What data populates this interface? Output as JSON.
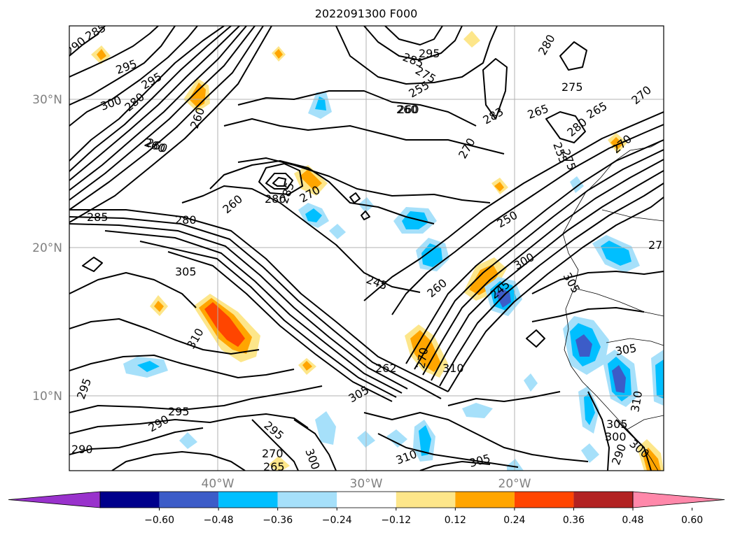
{
  "title": "2022091300 F000",
  "lat_labels": [
    "30°N",
    "20°N",
    "10°N"
  ],
  "lon_labels": [
    "40°W",
    "30°W",
    "20°W"
  ],
  "contour_labels": [
    "285",
    "290",
    "295",
    "295",
    "300",
    "280",
    "260",
    "260",
    "260",
    "285",
    "305",
    "310",
    "305",
    "280",
    "260",
    "285",
    "270",
    "260",
    "280",
    "285",
    "295",
    "290",
    "295",
    "300",
    "295",
    "270",
    "265",
    "310",
    "305",
    "290",
    "245",
    "250",
    "260",
    "300",
    "305",
    "310",
    "295",
    "275",
    "255",
    "260",
    "270",
    "283",
    "255",
    "275",
    "280",
    "265",
    "270",
    "265",
    "280",
    "270",
    "305",
    "305",
    "300",
    "300",
    "290",
    "310",
    "275",
    "245",
    "262",
    "270",
    "27"
  ],
  "colorbar": {
    "tick_labels": [
      "−0.60",
      "−0.48",
      "−0.36",
      "−0.24",
      "−0.12",
      "0.12",
      "0.24",
      "0.36",
      "0.48",
      "0.60"
    ],
    "colors": [
      "#9932cc",
      "#00008b",
      "#3c5cc8",
      "#00bfff",
      "#a6e0fa",
      "#ffffff",
      "#fde68a",
      "#ffa500",
      "#ff4500",
      "#b22222",
      "#ff88aa"
    ]
  },
  "colors": {
    "contour": "#000000",
    "grid": "#b0b0b0",
    "axis_label": "#808080"
  }
}
